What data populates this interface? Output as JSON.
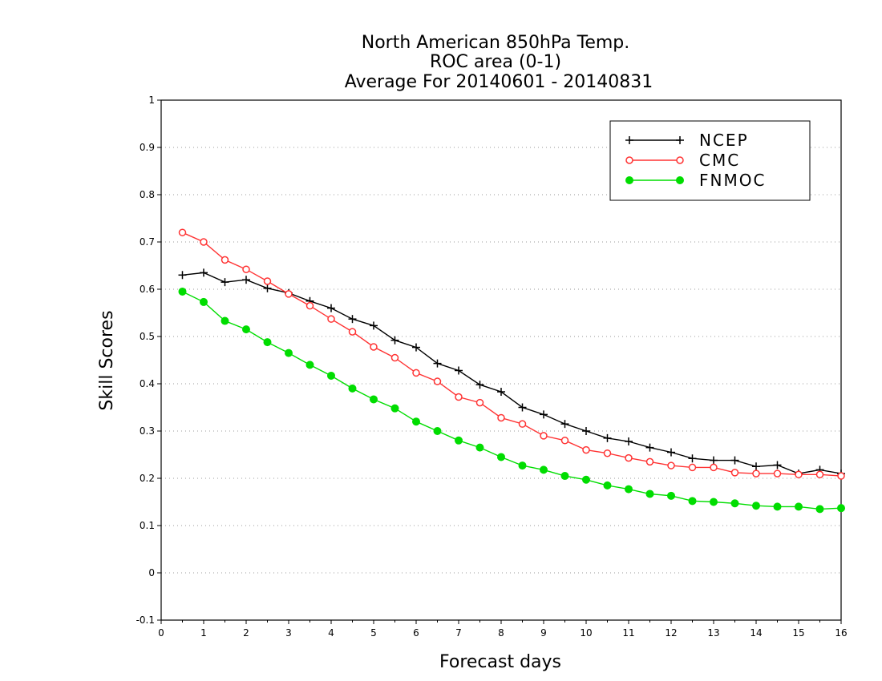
{
  "chart_data": {
    "type": "line",
    "title_lines": [
      "North American 850hPa Temp.",
      "ROC area (0-1)",
      "Average For 20140601 - 20140831"
    ],
    "xlabel": "Forecast days",
    "ylabel": "Skill Scores",
    "xlim": [
      0,
      16
    ],
    "ylim": [
      -0.1,
      1
    ],
    "xticks": [
      "0",
      "1",
      "2",
      "3",
      "4",
      "5",
      "6",
      "7",
      "8",
      "9",
      "10",
      "11",
      "12",
      "13",
      "14",
      "15",
      "16"
    ],
    "yticks": [
      "-0.1",
      "0",
      "0.1",
      "0.2",
      "0.3",
      "0.4",
      "0.5",
      "0.6",
      "0.7",
      "0.8",
      "0.9",
      "1"
    ],
    "grid": "horizontal dotted",
    "legend_position": "top-right",
    "x": [
      0.5,
      1,
      1.5,
      2,
      2.5,
      3,
      3.5,
      4,
      4.5,
      5,
      5.5,
      6,
      6.5,
      7,
      7.5,
      8,
      8.5,
      9,
      9.5,
      10,
      10.5,
      11,
      11.5,
      12,
      12.5,
      13,
      13.5,
      14,
      14.5,
      15,
      15.5,
      16
    ],
    "series": [
      {
        "name": "NCEP",
        "color": "#000000",
        "marker": "plus",
        "values": [
          0.63,
          0.635,
          0.615,
          0.62,
          0.602,
          0.592,
          0.575,
          0.56,
          0.537,
          0.523,
          0.492,
          0.477,
          0.443,
          0.428,
          0.398,
          0.383,
          0.35,
          0.335,
          0.315,
          0.3,
          0.285,
          0.278,
          0.265,
          0.255,
          0.242,
          0.238,
          0.238,
          0.225,
          0.228,
          0.21,
          0.218,
          0.21
        ]
      },
      {
        "name": "CMC",
        "color": "#ff3333",
        "marker": "open-circle",
        "values": [
          0.72,
          0.7,
          0.662,
          0.642,
          0.617,
          0.59,
          0.565,
          0.537,
          0.51,
          0.478,
          0.455,
          0.423,
          0.405,
          0.372,
          0.36,
          0.328,
          0.315,
          0.29,
          0.28,
          0.26,
          0.253,
          0.243,
          0.235,
          0.227,
          0.223,
          0.223,
          0.212,
          0.21,
          0.21,
          0.208,
          0.208,
          0.205
        ]
      },
      {
        "name": "FNMOC",
        "color": "#00dd00",
        "marker": "filled-circle",
        "values": [
          0.595,
          0.573,
          0.533,
          0.515,
          0.488,
          0.465,
          0.44,
          0.417,
          0.39,
          0.367,
          0.348,
          0.32,
          0.3,
          0.28,
          0.265,
          0.245,
          0.227,
          0.218,
          0.205,
          0.197,
          0.185,
          0.177,
          0.167,
          0.163,
          0.152,
          0.15,
          0.147,
          0.142,
          0.14,
          0.14,
          0.135,
          0.137
        ]
      }
    ]
  }
}
